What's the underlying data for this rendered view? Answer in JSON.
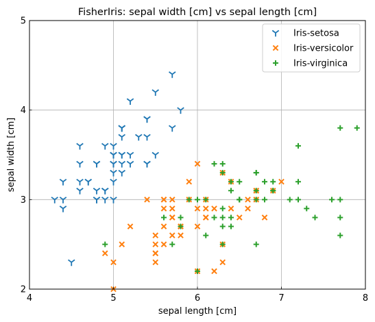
{
  "chart_data": {
    "type": "scatter",
    "title": "FisherIris: sepal width [cm] vs sepal length [cm]",
    "xlabel": "sepal length [cm]",
    "ylabel": "sepal width [cm]",
    "xlim": [
      4,
      8
    ],
    "ylim": [
      2,
      5
    ],
    "xticks": [
      "4",
      "5",
      "6",
      "7",
      "8"
    ],
    "yticks": [
      "2",
      "3",
      "4",
      "5"
    ],
    "grid": true,
    "legend_position": "top-right",
    "series": [
      {
        "name": "Iris-setosa",
        "marker": "tri_down",
        "color": "#1f77b4",
        "points": [
          [
            5.1,
            3.5
          ],
          [
            4.9,
            3.0
          ],
          [
            4.7,
            3.2
          ],
          [
            4.6,
            3.1
          ],
          [
            5.0,
            3.6
          ],
          [
            5.4,
            3.9
          ],
          [
            4.6,
            3.4
          ],
          [
            5.0,
            3.4
          ],
          [
            4.4,
            2.9
          ],
          [
            4.9,
            3.1
          ],
          [
            5.4,
            3.7
          ],
          [
            4.8,
            3.4
          ],
          [
            4.8,
            3.0
          ],
          [
            4.3,
            3.0
          ],
          [
            5.8,
            4.0
          ],
          [
            5.7,
            4.4
          ],
          [
            5.4,
            3.9
          ],
          [
            5.1,
            3.5
          ],
          [
            5.7,
            3.8
          ],
          [
            5.1,
            3.8
          ],
          [
            5.4,
            3.4
          ],
          [
            5.1,
            3.7
          ],
          [
            4.6,
            3.6
          ],
          [
            5.1,
            3.3
          ],
          [
            4.8,
            3.4
          ],
          [
            5.0,
            3.0
          ],
          [
            5.0,
            3.4
          ],
          [
            5.2,
            3.5
          ],
          [
            5.2,
            3.4
          ],
          [
            4.7,
            3.2
          ],
          [
            4.8,
            3.1
          ],
          [
            5.4,
            3.4
          ],
          [
            5.2,
            4.1
          ],
          [
            5.5,
            4.2
          ],
          [
            4.9,
            3.1
          ],
          [
            5.0,
            3.2
          ],
          [
            5.5,
            3.5
          ],
          [
            4.9,
            3.6
          ],
          [
            4.4,
            3.0
          ],
          [
            5.1,
            3.4
          ],
          [
            5.0,
            3.5
          ],
          [
            4.5,
            2.3
          ],
          [
            4.4,
            3.2
          ],
          [
            5.0,
            3.5
          ],
          [
            5.1,
            3.8
          ],
          [
            4.8,
            3.0
          ],
          [
            5.1,
            3.8
          ],
          [
            4.6,
            3.2
          ],
          [
            5.3,
            3.7
          ],
          [
            5.0,
            3.3
          ]
        ]
      },
      {
        "name": "Iris-versicolor",
        "marker": "x",
        "color": "#ff7f0e",
        "points": [
          [
            7.0,
            3.2
          ],
          [
            6.4,
            3.2
          ],
          [
            6.9,
            3.1
          ],
          [
            5.5,
            2.3
          ],
          [
            6.5,
            2.8
          ],
          [
            5.7,
            2.8
          ],
          [
            6.3,
            3.3
          ],
          [
            4.9,
            2.4
          ],
          [
            6.6,
            2.9
          ],
          [
            5.2,
            2.7
          ],
          [
            5.0,
            2.0
          ],
          [
            5.9,
            3.0
          ],
          [
            6.0,
            2.2
          ],
          [
            6.1,
            2.9
          ],
          [
            5.6,
            2.9
          ],
          [
            6.7,
            3.1
          ],
          [
            5.6,
            3.0
          ],
          [
            5.8,
            2.7
          ],
          [
            6.2,
            2.2
          ],
          [
            5.6,
            2.5
          ],
          [
            5.9,
            3.2
          ],
          [
            6.1,
            2.8
          ],
          [
            6.3,
            2.5
          ],
          [
            6.1,
            2.8
          ],
          [
            6.4,
            2.9
          ],
          [
            6.6,
            3.0
          ],
          [
            6.8,
            2.8
          ],
          [
            6.7,
            3.0
          ],
          [
            6.0,
            2.9
          ],
          [
            5.7,
            2.6
          ],
          [
            5.5,
            2.4
          ],
          [
            5.5,
            2.4
          ],
          [
            5.8,
            2.7
          ],
          [
            6.0,
            2.7
          ],
          [
            5.4,
            3.0
          ],
          [
            6.0,
            3.4
          ],
          [
            6.7,
            3.1
          ],
          [
            6.3,
            2.3
          ],
          [
            5.6,
            3.0
          ],
          [
            5.5,
            2.5
          ],
          [
            5.5,
            2.6
          ],
          [
            6.1,
            3.0
          ],
          [
            5.8,
            2.6
          ],
          [
            5.0,
            2.3
          ],
          [
            5.6,
            2.7
          ],
          [
            5.7,
            3.0
          ],
          [
            5.7,
            2.9
          ],
          [
            6.2,
            2.9
          ],
          [
            5.1,
            2.5
          ],
          [
            5.7,
            2.8
          ]
        ]
      },
      {
        "name": "Iris-virginica",
        "marker": "plus",
        "color": "#2ca02c",
        "points": [
          [
            6.3,
            3.3
          ],
          [
            5.8,
            2.7
          ],
          [
            7.1,
            3.0
          ],
          [
            6.3,
            2.9
          ],
          [
            6.5,
            3.0
          ],
          [
            7.6,
            3.0
          ],
          [
            4.9,
            2.5
          ],
          [
            7.3,
            2.9
          ],
          [
            6.7,
            2.5
          ],
          [
            7.2,
            3.6
          ],
          [
            6.5,
            3.2
          ],
          [
            6.4,
            2.7
          ],
          [
            6.8,
            3.0
          ],
          [
            5.7,
            2.5
          ],
          [
            5.8,
            2.8
          ],
          [
            6.4,
            3.2
          ],
          [
            6.5,
            3.0
          ],
          [
            7.7,
            3.8
          ],
          [
            7.7,
            2.6
          ],
          [
            6.0,
            2.2
          ],
          [
            6.9,
            3.2
          ],
          [
            5.6,
            2.8
          ],
          [
            7.7,
            2.8
          ],
          [
            6.3,
            2.7
          ],
          [
            6.7,
            3.3
          ],
          [
            7.2,
            3.2
          ],
          [
            6.2,
            2.8
          ],
          [
            6.1,
            3.0
          ],
          [
            6.4,
            2.8
          ],
          [
            7.2,
            3.0
          ],
          [
            7.4,
            2.8
          ],
          [
            7.9,
            3.8
          ],
          [
            6.4,
            2.8
          ],
          [
            6.3,
            2.8
          ],
          [
            6.1,
            2.6
          ],
          [
            7.7,
            3.0
          ],
          [
            6.3,
            3.4
          ],
          [
            6.4,
            3.1
          ],
          [
            6.0,
            3.0
          ],
          [
            6.9,
            3.1
          ],
          [
            6.7,
            3.1
          ],
          [
            6.9,
            3.1
          ],
          [
            5.8,
            2.7
          ],
          [
            6.8,
            3.2
          ],
          [
            6.7,
            3.3
          ],
          [
            6.7,
            3.0
          ],
          [
            6.3,
            2.5
          ],
          [
            6.5,
            3.0
          ],
          [
            6.2,
            3.4
          ],
          [
            5.9,
            3.0
          ]
        ]
      }
    ]
  }
}
